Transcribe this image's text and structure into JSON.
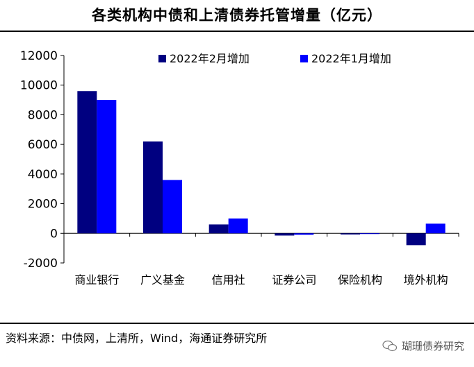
{
  "title": "各类机构中债和上清债券托管增量（亿元）",
  "source": "资料来源：中债网，上清所，Wind，海通证券研究所",
  "watermark": "瑚珊债券研究",
  "chart_data": {
    "type": "bar",
    "categories": [
      "商业银行",
      "广义基金",
      "信用社",
      "证券公司",
      "保险机构",
      "境外机构"
    ],
    "series": [
      {
        "name": "2022年2月增加",
        "color": "#000080",
        "values": [
          9600,
          6200,
          600,
          -150,
          -80,
          -800
        ]
      },
      {
        "name": "2022年1月增加",
        "color": "#0000FF",
        "values": [
          9000,
          3600,
          1000,
          -100,
          -30,
          650
        ]
      }
    ],
    "ylim": [
      -2000,
      12000
    ],
    "yticks": [
      -2000,
      0,
      2000,
      4000,
      6000,
      8000,
      10000,
      12000
    ],
    "grid": false,
    "legend": "top"
  }
}
